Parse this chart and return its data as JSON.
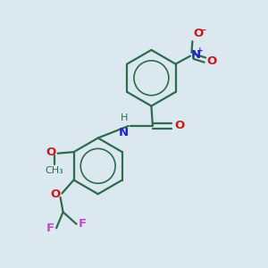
{
  "bg_color": "#dce8f0",
  "bond_color": "#2d6b4a",
  "n_color": "#2020cc",
  "o_color": "#cc1a1a",
  "f_color": "#cc44cc",
  "line_width": 1.6,
  "font_size": 9.5,
  "ring_r": 0.105,
  "upper_ring": [
    0.565,
    0.71
  ],
  "lower_ring": [
    0.365,
    0.38
  ]
}
